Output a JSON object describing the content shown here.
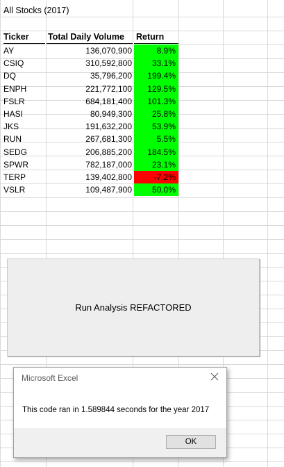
{
  "sheet": {
    "title": "All Stocks (2017)",
    "headers": {
      "ticker": "Ticker",
      "volume": "Total Daily Volume",
      "return": "Return"
    },
    "rows": [
      {
        "ticker": "AY",
        "volume": "136,070,900",
        "return": "8.9%",
        "status": "positive"
      },
      {
        "ticker": "CSIQ",
        "volume": "310,592,800",
        "return": "33.1%",
        "status": "positive"
      },
      {
        "ticker": "DQ",
        "volume": "35,796,200",
        "return": "199.4%",
        "status": "positive"
      },
      {
        "ticker": "ENPH",
        "volume": "221,772,100",
        "return": "129.5%",
        "status": "positive"
      },
      {
        "ticker": "FSLR",
        "volume": "684,181,400",
        "return": "101.3%",
        "status": "positive"
      },
      {
        "ticker": "HASI",
        "volume": "80,949,300",
        "return": "25.8%",
        "status": "positive"
      },
      {
        "ticker": "JKS",
        "volume": "191,632,200",
        "return": "53.9%",
        "status": "positive"
      },
      {
        "ticker": "RUN",
        "volume": "267,681,300",
        "return": "5.5%",
        "status": "positive"
      },
      {
        "ticker": "SEDG",
        "volume": "206,885,200",
        "return": "184.5%",
        "status": "positive"
      },
      {
        "ticker": "SPWR",
        "volume": "782,187,000",
        "return": "23.1%",
        "status": "positive"
      },
      {
        "ticker": "TERP",
        "volume": "139,402,800",
        "return": "-7.2%",
        "status": "negative"
      },
      {
        "ticker": "VSLR",
        "volume": "109,487,900",
        "return": "50.0%",
        "status": "positive"
      }
    ]
  },
  "button": {
    "label": "Run Analysis REFACTORED"
  },
  "dialog": {
    "title": "Microsoft Excel",
    "message": "This code ran in 1.589844 seconds for the year 2017",
    "ok_label": "OK",
    "close_icon": "close-icon"
  },
  "colors": {
    "positive": "#00ff00",
    "negative": "#ff0000",
    "gridline": "#d9d9d9"
  }
}
